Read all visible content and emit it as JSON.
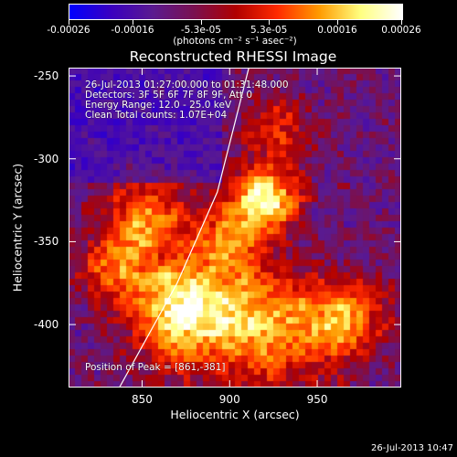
{
  "colorbar": {
    "tick_labels": [
      "-0.00026",
      "-0.00016",
      "-5.3e-05",
      "5.3e-05",
      "0.00016",
      "0.00026"
    ],
    "tick_values": [
      -0.00026,
      -0.00016,
      -5.3e-05,
      5.3e-05,
      0.00016,
      0.00026
    ],
    "range": [
      -0.00026,
      0.00026
    ],
    "units": "(photons cm⁻² s⁻¹ asec⁻²)",
    "colormap": [
      "#0000ff",
      "#3a00c0",
      "#5a1a90",
      "#7a1050",
      "#b00000",
      "#ff2a00",
      "#ff9a00",
      "#ffff80",
      "#ffffff"
    ]
  },
  "title": "Reconstructed RHESSI Image",
  "annotations": {
    "time": "26-Jul-2013 01:27:00.000 to 01:31:48.000",
    "detectors": "Detectors: 3F 5F 6F 7F 8F 9F, Att 0",
    "energy": "Energy Range: 12.0 - 25.0 keV",
    "clean": "Clean    Total counts: 1.07E+04",
    "peak": "Position of Peak = [861,-381]"
  },
  "axes": {
    "xlabel": "Heliocentric X (arcsec)",
    "ylabel": "Heliocentric Y (arcsec)",
    "xticks": [
      "850",
      "900",
      "950"
    ],
    "xtick_values": [
      850,
      900,
      950
    ],
    "yticks": [
      "-250",
      "-300",
      "-350",
      "-400"
    ],
    "ytick_values": [
      -250,
      -300,
      -350,
      -400
    ],
    "xlim": [
      808,
      998
    ],
    "ylim": [
      -438,
      -245
    ]
  },
  "limb": {
    "color": "#ffffff",
    "points": [
      [
        837,
        -438
      ],
      [
        870,
        -375
      ],
      [
        893,
        -320
      ],
      [
        911,
        -245
      ]
    ]
  },
  "peak_position": [
    861,
    -381
  ],
  "timestamp": "26-Jul-2013 10:47"
}
